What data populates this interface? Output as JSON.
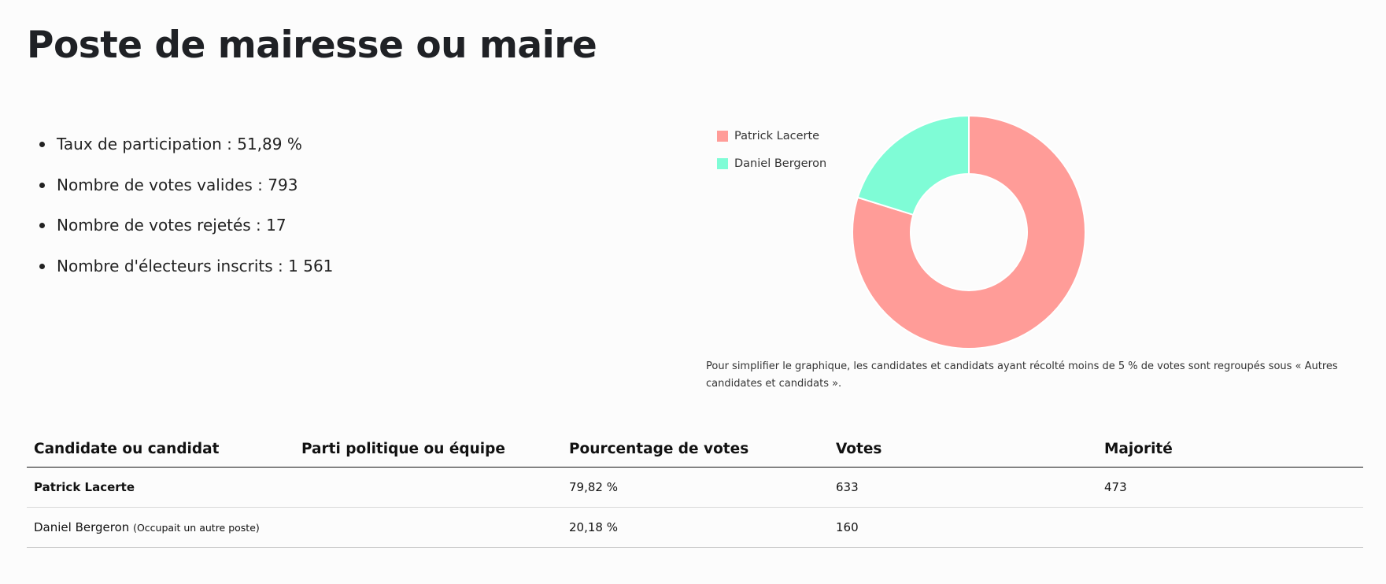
{
  "title": "Poste de mairesse ou maire",
  "stats": [
    "Taux de participation : 51,89 %",
    "Nombre de votes valides : 793",
    "Nombre de votes rejetés : 17",
    "Nombre d'électeurs inscrits : 1 561"
  ],
  "chart_data": {
    "type": "pie",
    "variant": "donut",
    "legend_position": "top-left",
    "series": [
      {
        "name": "Patrick Lacerte",
        "value": 79.82,
        "color": "#ff9c98"
      },
      {
        "name": "Daniel Bergeron",
        "value": 20.18,
        "color": "#7ffcd6"
      }
    ]
  },
  "note": "Pour simplifier le graphique, les candidates et candidats ayant récolté moins de 5 % de votes sont regroupés sous « Autres candidates et candidats ».",
  "table": {
    "headers": [
      "Candidate ou candidat",
      "Parti politique ou équipe",
      "Pourcentage de votes",
      "Votes",
      "Majorité"
    ],
    "rows": [
      {
        "name": "Patrick Lacerte",
        "note": "",
        "party": "",
        "pct": "79,82 %",
        "votes": "633",
        "majority": "473"
      },
      {
        "name": "Daniel Bergeron",
        "note": "(Occupait un autre poste)",
        "party": "",
        "pct": "20,18 %",
        "votes": "160",
        "majority": ""
      }
    ]
  }
}
